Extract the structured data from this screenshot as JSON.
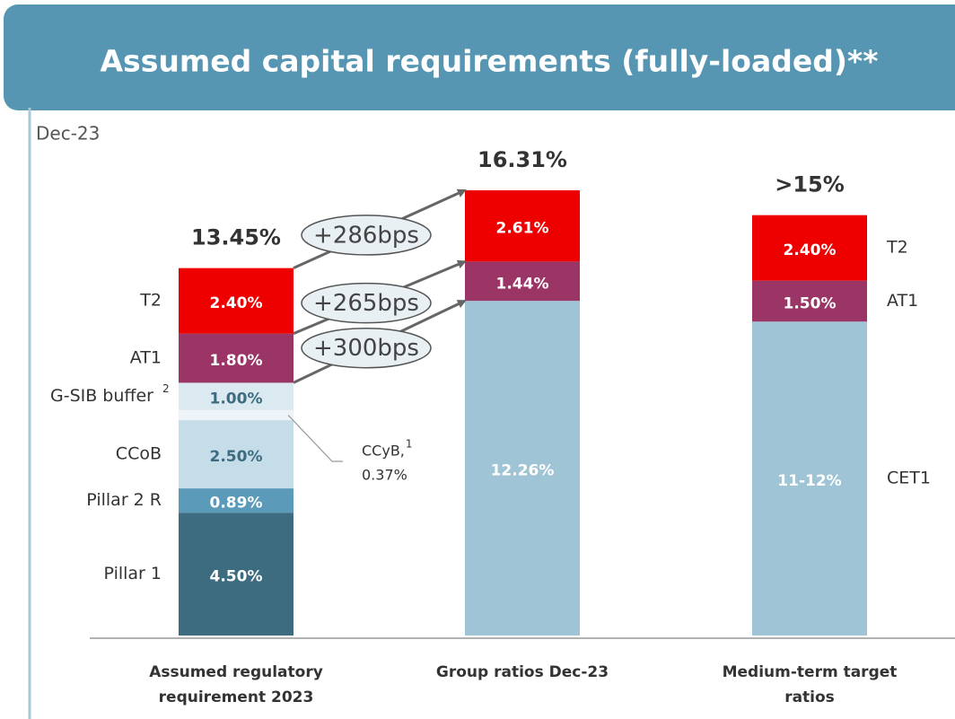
{
  "chart_data": {
    "type": "bar",
    "stacked": true,
    "title": "Assumed capital requirements (fully-loaded)**",
    "subtitle": "Dec-23",
    "categories": [
      "Assumed regulatory requirement 2023",
      "Group ratios Dec-23",
      "Medium-term target ratios"
    ],
    "total_labels": [
      "13.45%",
      "16.31%",
      ">15%"
    ],
    "series": [
      {
        "name": "CET1",
        "color": "#9fc4d6",
        "label_color": "#ffffff",
        "values": [
          null,
          12.26,
          11.5
        ],
        "value_labels": [
          null,
          "12.26%",
          "11-12%"
        ]
      },
      {
        "name": "Pillar 1",
        "color": "#3d6b80",
        "label_color": "#ffffff",
        "values": [
          4.5,
          null,
          null
        ],
        "value_labels": [
          "4.50%",
          null,
          null
        ]
      },
      {
        "name": "Pillar 2 R",
        "color": "#5b9ab8",
        "label_color": "#ffffff",
        "values": [
          0.89,
          null,
          null
        ],
        "value_labels": [
          "0.89%",
          null,
          null
        ]
      },
      {
        "name": "CCoB",
        "color": "#c5dde8",
        "label_color": "#3d6b80",
        "values": [
          2.5,
          null,
          null
        ],
        "value_labels": [
          "2.50%",
          null,
          null
        ]
      },
      {
        "name": "CCyB,",
        "footnote": "1",
        "label_position": "callout",
        "color": "#eef4f7",
        "label_color": "#444444",
        "values": [
          0.37,
          null,
          null
        ],
        "value_labels": [
          "0.37%",
          null,
          null
        ]
      },
      {
        "name": "G-SIB buffer",
        "footnote": "2",
        "color": "#dbe9f0",
        "label_color": "#3d6b80",
        "values": [
          1.0,
          null,
          null
        ],
        "value_labels": [
          "1.00%",
          null,
          null
        ]
      },
      {
        "name": "AT1",
        "color": "#9b3565",
        "label_color": "#ffffff",
        "values": [
          1.8,
          1.44,
          1.5
        ],
        "value_labels": [
          "1.80%",
          "1.44%",
          "1.50%"
        ]
      },
      {
        "name": "T2",
        "color": "#ee0000",
        "label_color": "#ffffff",
        "values": [
          2.4,
          2.61,
          2.4
        ],
        "value_labels": [
          "2.40%",
          "2.61%",
          "2.40%"
        ]
      }
    ],
    "annotations": [
      "+286bps",
      "+265bps",
      "+300bps"
    ]
  }
}
